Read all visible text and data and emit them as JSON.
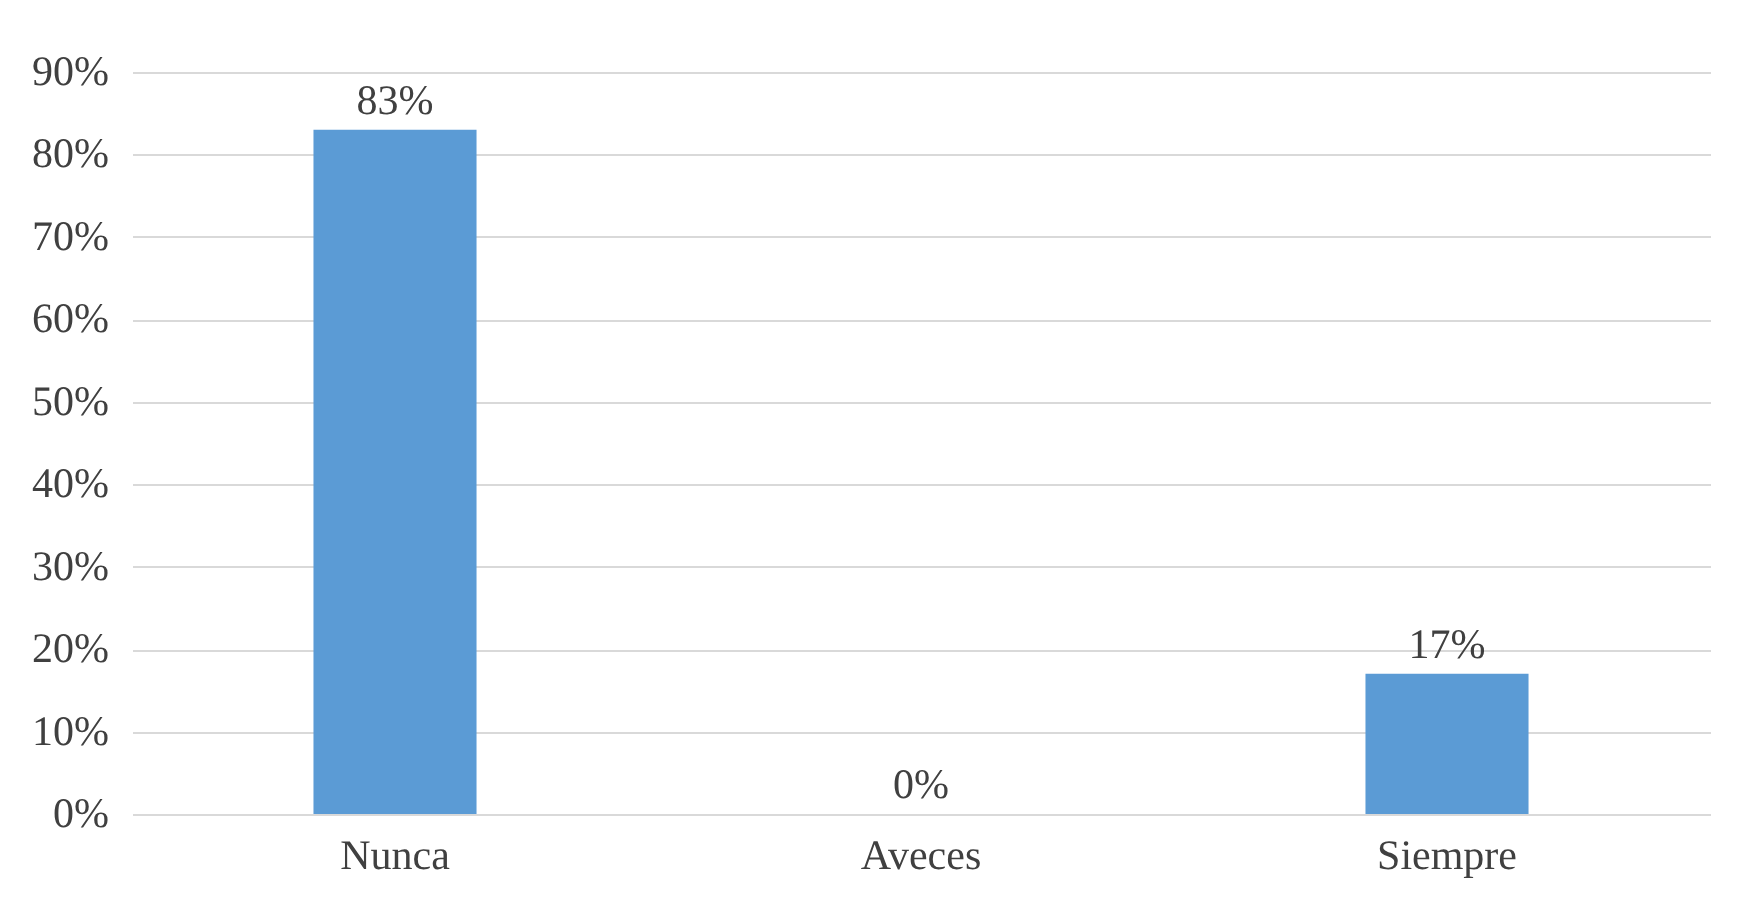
{
  "chart_data": {
    "type": "bar",
    "categories": [
      "Nunca",
      "Aveces",
      "Siempre"
    ],
    "values": [
      83,
      0,
      17
    ],
    "color": "#5b9bd5",
    "value_labels": [
      "83%",
      "0%",
      "17%"
    ],
    "ylim": [
      0,
      90
    ],
    "yticks": [
      {
        "value": 0,
        "label": "0%"
      },
      {
        "value": 10,
        "label": "10%"
      },
      {
        "value": 20,
        "label": "20%"
      },
      {
        "value": 30,
        "label": "30%"
      },
      {
        "value": 40,
        "label": "40%"
      },
      {
        "value": 50,
        "label": "50%"
      },
      {
        "value": 60,
        "label": "60%"
      },
      {
        "value": 70,
        "label": "70%"
      },
      {
        "value": 80,
        "label": "80%"
      },
      {
        "value": 90,
        "label": "90%"
      }
    ],
    "grid": "y"
  }
}
